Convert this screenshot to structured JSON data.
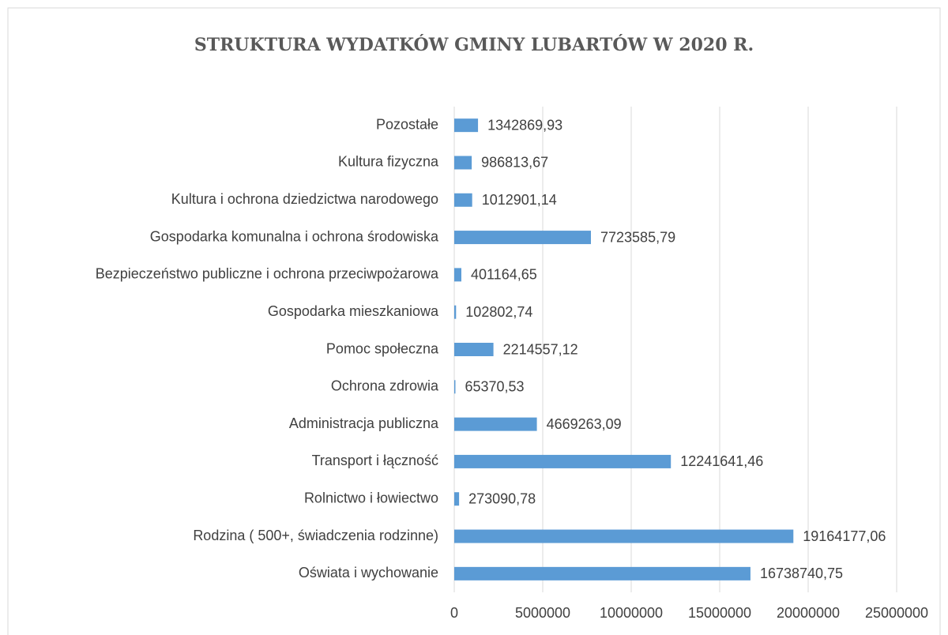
{
  "chart_data": {
    "type": "barh",
    "title": "STRUKTURA WYDATKÓW GMINY LUBARTÓW W 2020 R.",
    "categories": [
      "Pozostałe",
      "Kultura fizyczna",
      "Kultura i ochrona dziedzictwa narodowego",
      "Gospodarka komunalna i ochrona środowiska",
      "Bezpieczeństwo publiczne i ochrona przeciwpożarowa",
      "Gospodarka mieszkaniowa",
      "Pomoc społeczna",
      "Ochrona zdrowia",
      "Administracja publiczna",
      "Transport i łączność",
      "Rolnictwo i łowiectwo",
      "Rodzina ( 500+, świadczenia rodzinne)",
      "Oświata i wychowanie"
    ],
    "values": [
      1342869.93,
      986813.67,
      1012901.14,
      7723585.79,
      401164.65,
      102802.74,
      2214557.12,
      65370.53,
      4669263.09,
      12241641.46,
      273090.78,
      19164177.06,
      16738740.75
    ],
    "value_labels": [
      "1342869,93",
      "986813,67",
      "1012901,14",
      "7723585,79",
      "401164,65",
      "102802,74",
      "2214557,12",
      "65370,53",
      "4669263,09",
      "12241641,46",
      "273090,78",
      "19164177,06",
      "16738740,75"
    ],
    "color": "#5b9bd5",
    "xlim": [
      0,
      25000000
    ],
    "xticks": [
      0,
      5000000,
      10000000,
      15000000,
      20000000,
      25000000
    ],
    "grid": true
  }
}
